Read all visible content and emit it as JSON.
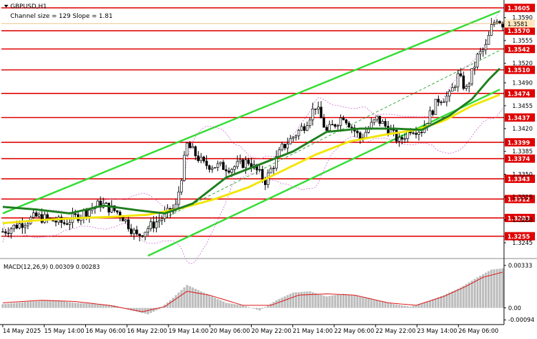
{
  "header": {
    "symbol": "GBPUSD,H1",
    "channel_info": "Channel size = 129 Slope = 1.81"
  },
  "colors": {
    "background": "#ffffff",
    "candle": "#000000",
    "level_line": "#e00000",
    "level_label_bg": "#e00000",
    "level_label_text": "#ffffff",
    "channel": "#33dd33",
    "ma_fast": "#1e7f1e",
    "ma_slow": "#f2e600",
    "bollinger": "#cc66cc",
    "dashed_mid": "#33aa33",
    "macd_hist": "#bdbdbd",
    "macd_signal": "#dd1111",
    "axis_text": "#000000",
    "price_marker": "#ffe8c0"
  },
  "chart_data": {
    "type": "candlestick",
    "title": "GBPUSD,H1",
    "subtitle": "Channel size = 129 Slope = 1.81",
    "ylim": [
      1.3225,
      1.3615
    ],
    "y_ticks": [
      1.3245,
      1.328,
      1.3315,
      1.335,
      1.3385,
      1.342,
      1.3455,
      1.349,
      1.352,
      1.3555,
      1.359
    ],
    "y_tick_labels": [
      "1.3245",
      "1.3280",
      "1.3315",
      "1.3350",
      "1.3385",
      "1.3420",
      "1.3455",
      "1.3490",
      "1.3520",
      "1.3555",
      "1.3590"
    ],
    "levels": [
      1.3605,
      1.357,
      1.3542,
      1.351,
      1.3474,
      1.3437,
      1.3399,
      1.3374,
      1.3343,
      1.3312,
      1.3283,
      1.3255
    ],
    "level_labels": [
      "1.3605",
      "1.3570",
      "1.3542",
      "1.3510",
      "1.3474",
      "1.3437",
      "1.3399",
      "1.3374",
      "1.3343",
      "1.3312",
      "1.3283",
      "1.3255"
    ],
    "current_price": 1.3581,
    "current_price_label": "1.3581",
    "x_labels": [
      "14 May 2025",
      "15 May 14:00",
      "16 May 06:00",
      "16 May 22:00",
      "19 May 14:00",
      "20 May 06:00",
      "20 May 22:00",
      "21 May 14:00",
      "22 May 06:00",
      "22 May 22:00",
      "23 May 14:00",
      "26 May 06:00"
    ],
    "n_bars": 180,
    "price_path": [
      [
        0,
        1.3262
      ],
      [
        12,
        1.3285
      ],
      [
        22,
        1.3275
      ],
      [
        35,
        1.3305
      ],
      [
        42,
        1.329
      ],
      [
        48,
        1.3255
      ],
      [
        56,
        1.328
      ],
      [
        62,
        1.33
      ],
      [
        66,
        1.3395
      ],
      [
        72,
        1.3365
      ],
      [
        82,
        1.336
      ],
      [
        88,
        1.337
      ],
      [
        94,
        1.334
      ],
      [
        100,
        1.339
      ],
      [
        108,
        1.3425
      ],
      [
        112,
        1.3455
      ],
      [
        116,
        1.3415
      ],
      [
        122,
        1.344
      ],
      [
        128,
        1.3405
      ],
      [
        134,
        1.3435
      ],
      [
        138,
        1.342
      ],
      [
        142,
        1.34
      ],
      [
        146,
        1.342
      ],
      [
        150,
        1.3418
      ],
      [
        156,
        1.3465
      ],
      [
        160,
        1.347
      ],
      [
        163,
        1.35
      ],
      [
        166,
        1.348
      ],
      [
        170,
        1.353
      ],
      [
        173,
        1.3545
      ],
      [
        175,
        1.3575
      ],
      [
        177,
        1.359
      ],
      [
        179,
        1.3581
      ]
    ],
    "channel": {
      "upper": [
        [
          0,
          1.329
        ],
        [
          178,
          1.36
        ]
      ],
      "lower": [
        [
          52,
          1.3225
        ],
        [
          178,
          1.348
        ]
      ],
      "mid_dashed": [
        [
          52,
          1.327
        ],
        [
          178,
          1.354
        ]
      ]
    },
    "ma_fast_path": [
      [
        0,
        1.33
      ],
      [
        12,
        1.3296
      ],
      [
        24,
        1.329
      ],
      [
        36,
        1.3302
      ],
      [
        48,
        1.3295
      ],
      [
        58,
        1.329
      ],
      [
        68,
        1.3305
      ],
      [
        80,
        1.3345
      ],
      [
        92,
        1.3365
      ],
      [
        104,
        1.3385
      ],
      [
        116,
        1.3415
      ],
      [
        128,
        1.342
      ],
      [
        140,
        1.342
      ],
      [
        150,
        1.3418
      ],
      [
        160,
        1.344
      ],
      [
        168,
        1.3465
      ],
      [
        174,
        1.3495
      ],
      [
        178,
        1.3512
      ]
    ],
    "ma_slow_path": [
      [
        0,
        1.3275
      ],
      [
        14,
        1.328
      ],
      [
        28,
        1.3283
      ],
      [
        40,
        1.3285
      ],
      [
        52,
        1.3288
      ],
      [
        64,
        1.3298
      ],
      [
        76,
        1.3312
      ],
      [
        88,
        1.333
      ],
      [
        100,
        1.3355
      ],
      [
        112,
        1.338
      ],
      [
        124,
        1.34
      ],
      [
        136,
        1.341
      ],
      [
        148,
        1.3418
      ],
      [
        158,
        1.3432
      ],
      [
        168,
        1.3455
      ],
      [
        178,
        1.3472
      ]
    ],
    "macd": {
      "label": "MACD(12,26,9) 0.00309 0.00283",
      "ylim": [
        -0.0012,
        0.0036
      ],
      "tick_top": 0.00333,
      "tick_top_label": "0.00333",
      "tick_zero": 0.0,
      "tick_zero_label": "0.00",
      "tick_bottom": -0.00094,
      "tick_bottom_label": "-0.00094",
      "hist_path": [
        [
          0,
          0.0003
        ],
        [
          10,
          0.0005
        ],
        [
          18,
          0.0006
        ],
        [
          26,
          0.0004
        ],
        [
          34,
          0.0003
        ],
        [
          40,
          0.0002
        ],
        [
          46,
          -0.0002
        ],
        [
          52,
          -0.0005
        ],
        [
          56,
          -0.0001
        ],
        [
          60,
          0.0006
        ],
        [
          66,
          0.0018
        ],
        [
          72,
          0.0012
        ],
        [
          80,
          0.0004
        ],
        [
          86,
          0.0002
        ],
        [
          92,
          -0.0002
        ],
        [
          98,
          0.0006
        ],
        [
          104,
          0.0012
        ],
        [
          110,
          0.0013
        ],
        [
          116,
          0.0009
        ],
        [
          122,
          0.0011
        ],
        [
          128,
          0.0009
        ],
        [
          134,
          0.0006
        ],
        [
          140,
          0.0003
        ],
        [
          146,
          0.0001
        ],
        [
          152,
          0.0005
        ],
        [
          158,
          0.001
        ],
        [
          164,
          0.0016
        ],
        [
          170,
          0.0024
        ],
        [
          175,
          0.003
        ],
        [
          179,
          0.0031
        ]
      ],
      "signal_path": [
        [
          0,
          0.0004
        ],
        [
          14,
          0.0006
        ],
        [
          26,
          0.0005
        ],
        [
          38,
          0.0002
        ],
        [
          50,
          -0.0003
        ],
        [
          58,
          0.0001
        ],
        [
          66,
          0.0013
        ],
        [
          74,
          0.001
        ],
        [
          86,
          0.0002
        ],
        [
          96,
          0.0002
        ],
        [
          106,
          0.001
        ],
        [
          116,
          0.0011
        ],
        [
          126,
          0.001
        ],
        [
          138,
          0.0004
        ],
        [
          148,
          0.0002
        ],
        [
          158,
          0.0009
        ],
        [
          166,
          0.0017
        ],
        [
          172,
          0.0024
        ],
        [
          179,
          0.0028
        ]
      ]
    }
  }
}
